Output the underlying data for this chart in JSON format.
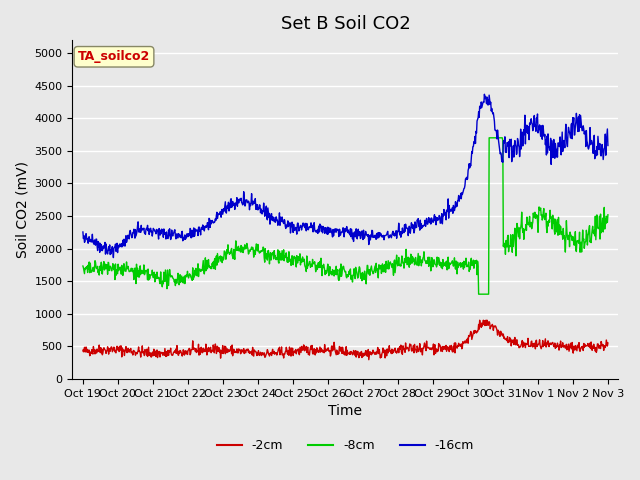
{
  "title": "Set B Soil CO2",
  "xlabel": "Time",
  "ylabel": "Soil CO2 (mV)",
  "ylim": [
    0,
    5200
  ],
  "yticks": [
    0,
    500,
    1000,
    1500,
    2000,
    2500,
    3000,
    3500,
    4000,
    4500,
    5000
  ],
  "bg_color": "#e8e8e8",
  "plot_bg_color": "#e8e8e8",
  "grid_color": "#ffffff",
  "line_red": "#cc0000",
  "line_green": "#00cc00",
  "line_blue": "#0000cc",
  "line_width": 1.0,
  "legend_label_red": "-2cm",
  "legend_label_green": "-8cm",
  "legend_label_blue": "-16cm",
  "box_label": "TA_soilco2",
  "box_text_color": "#cc0000",
  "box_bg_color": "#ffffcc",
  "box_edge_color": "#888866",
  "xtick_labels": [
    "Oct 19",
    "Oct 20",
    "Oct 21",
    "Oct 22",
    "Oct 23",
    "Oct 24",
    "Oct 25",
    "Oct 26",
    "Oct 27",
    "Oct 28",
    "Oct 29",
    "Oct 30",
    "Oct 31",
    "Nov 1",
    "Nov 2",
    "Nov 3"
  ],
  "xtick_positions": [
    0,
    1,
    2,
    3,
    4,
    5,
    6,
    7,
    8,
    9,
    10,
    11,
    12,
    13,
    14,
    15
  ],
  "title_fontsize": 13,
  "axis_label_fontsize": 10,
  "tick_fontsize": 8
}
